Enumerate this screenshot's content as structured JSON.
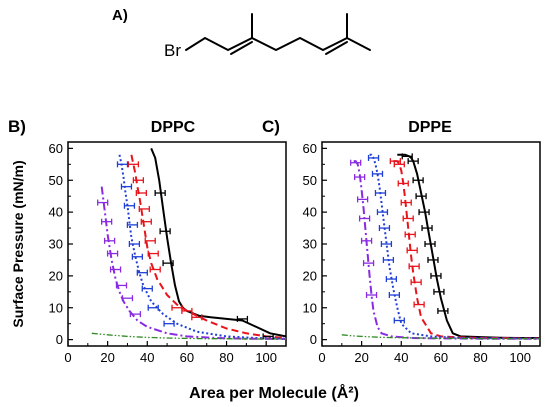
{
  "panels": {
    "a_label": "A)",
    "b_label": "B)",
    "c_label": "C)",
    "structure_atom": "Br"
  },
  "axes": {
    "ylabel": "Surface Pressure (mN/m)",
    "xlabel": "Area per Molecule (Å²)"
  },
  "colors": {
    "black": "#000000",
    "red": "#e8131b",
    "blue": "#1f3fd6",
    "purple": "#8a2be2",
    "green": "#2e8b22"
  },
  "chart_data": [
    {
      "type": "line",
      "title": "DPPC",
      "xlim": [
        0,
        110
      ],
      "ylim": [
        -2,
        62
      ],
      "xticks": [
        "0",
        "20",
        "40",
        "60",
        "80",
        "100"
      ],
      "yticks": [
        "0",
        "10",
        "20",
        "30",
        "40",
        "50",
        "60"
      ],
      "series": [
        {
          "color": "black",
          "style": "solid",
          "x": [
            42,
            44,
            46,
            48,
            50,
            52,
            54,
            56,
            58,
            60,
            62,
            66,
            72,
            80,
            88,
            95,
            102,
            110
          ],
          "y": [
            60,
            57,
            50,
            41,
            32,
            24,
            17,
            12,
            10,
            9,
            8.5,
            7.5,
            7,
            6.5,
            6,
            4,
            2,
            1
          ]
        },
        {
          "color": "red",
          "style": "dashed",
          "x": [
            32,
            33,
            34,
            35,
            36,
            37,
            38,
            39,
            40,
            42,
            45,
            50,
            55,
            60,
            65,
            70,
            80,
            90,
            100,
            110
          ],
          "y": [
            58,
            55,
            52,
            48,
            45,
            41,
            37,
            33,
            29,
            24,
            19,
            14,
            11,
            9,
            7.5,
            6,
            3.5,
            2,
            1,
            0.5
          ]
        },
        {
          "color": "blue",
          "style": "dotted",
          "x": [
            26,
            27,
            28,
            29,
            30,
            31,
            32,
            34,
            36,
            38,
            42,
            48,
            55,
            65,
            80,
            95,
            110
          ],
          "y": [
            58,
            55,
            51,
            46,
            42,
            37,
            32,
            26,
            21,
            17,
            12,
            8,
            5,
            2.5,
            1,
            0.5,
            0.3
          ]
        },
        {
          "color": "purple",
          "style": "dashdot",
          "x": [
            17,
            18,
            19,
            20,
            21,
            22,
            23,
            24,
            26,
            28,
            31,
            35,
            40,
            50,
            60,
            75,
            90,
            110
          ],
          "y": [
            48,
            43,
            38,
            33,
            29,
            25,
            22,
            19,
            15,
            12,
            9,
            6,
            4,
            2,
            1,
            0.5,
            0.3,
            0.2
          ]
        },
        {
          "color": "green",
          "style": "dashdotdot",
          "x": [
            12,
            20,
            30,
            40,
            50,
            60,
            70,
            80,
            90,
            100,
            110
          ],
          "y": [
            2,
            1.5,
            1,
            0.7,
            0.5,
            0.4,
            0.3,
            0.3,
            0.2,
            0.2,
            0.2
          ]
        }
      ],
      "errorbars": [
        {
          "color": "black",
          "x": [
            46.5,
            49,
            50.5,
            88,
            101
          ],
          "y": [
            46,
            34,
            24,
            6.5,
            1
          ]
        },
        {
          "color": "red",
          "x": [
            33,
            35.5,
            37,
            38.5,
            39.5,
            41.5,
            43,
            44,
            55,
            60,
            65
          ],
          "y": [
            55,
            50,
            46,
            41,
            37,
            31,
            27,
            22,
            10,
            9,
            7
          ]
        },
        {
          "color": "blue",
          "x": [
            27.5,
            29.5,
            31,
            32.5,
            33.5,
            35,
            37.5,
            40,
            43,
            51
          ],
          "y": [
            55,
            48,
            42,
            36,
            30,
            26,
            21,
            16,
            10,
            5
          ]
        },
        {
          "color": "purple",
          "x": [
            17.5,
            19.5,
            21,
            22.5,
            24,
            27,
            30,
            34
          ],
          "y": [
            43,
            37,
            31,
            27,
            22,
            17,
            13,
            8
          ]
        }
      ]
    },
    {
      "type": "line",
      "title": "DPPE",
      "xlim": [
        0,
        110
      ],
      "ylim": [
        -2,
        62
      ],
      "xticks": [
        "0",
        "20",
        "40",
        "60",
        "80",
        "100"
      ],
      "yticks": [
        "0",
        "10",
        "20",
        "30",
        "40",
        "50",
        "60"
      ],
      "series": [
        {
          "color": "black",
          "style": "solid",
          "x": [
            38,
            40,
            42,
            44,
            45,
            46,
            48,
            50,
            52,
            54,
            56,
            58,
            60,
            63,
            66,
            70,
            80,
            90,
            100,
            110
          ],
          "y": [
            58,
            58,
            58,
            57.5,
            57,
            56,
            52,
            46,
            40,
            33,
            26,
            19,
            13,
            6,
            2,
            1,
            0.8,
            0.6,
            0.5,
            0.5
          ]
        },
        {
          "color": "red",
          "style": "dashed",
          "x": [
            36,
            37,
            38,
            39,
            40,
            41,
            42,
            43,
            44,
            45,
            46,
            48,
            50,
            55,
            60,
            70,
            80,
            90,
            100,
            110
          ],
          "y": [
            56,
            56,
            56,
            55,
            53,
            49,
            44,
            38,
            32,
            26,
            21,
            13,
            7,
            2,
            1,
            0.7,
            0.5,
            0.5,
            0.4,
            0.4
          ]
        },
        {
          "color": "blue",
          "style": "dotted",
          "x": [
            24,
            25,
            26,
            27,
            28,
            29,
            30,
            31,
            32,
            33,
            34,
            36,
            38,
            40,
            45,
            55,
            70,
            90,
            110
          ],
          "y": [
            58,
            58,
            57,
            55,
            52,
            48,
            43,
            38,
            33,
            28,
            23,
            16,
            10,
            5,
            2,
            1,
            0.5,
            0.4,
            0.3
          ]
        },
        {
          "color": "purple",
          "style": "dashdot",
          "x": [
            16,
            17,
            18,
            19,
            20,
            21,
            22,
            23,
            24,
            25,
            26,
            28,
            30,
            35,
            45,
            60,
            80,
            110
          ],
          "y": [
            56,
            56,
            55,
            52,
            47,
            41,
            34,
            27,
            20,
            14,
            9,
            4,
            2,
            1,
            0.5,
            0.4,
            0.3,
            0.3
          ]
        },
        {
          "color": "green",
          "style": "dashdotdot",
          "x": [
            10,
            15,
            20,
            30,
            40,
            50,
            60,
            70,
            80,
            90,
            100,
            110
          ],
          "y": [
            1.5,
            1.2,
            1,
            0.7,
            0.6,
            0.5,
            0.4,
            0.4,
            0.3,
            0.3,
            0.3,
            0.3
          ]
        }
      ],
      "errorbars": [
        {
          "color": "black",
          "x": [
            43,
            46,
            48.5,
            50,
            51.5,
            53,
            54.5,
            56,
            57.5,
            59,
            61
          ],
          "y": [
            57.5,
            56,
            50,
            45,
            40,
            35,
            30,
            25,
            20,
            15,
            9
          ]
        },
        {
          "color": "red",
          "x": [
            37,
            39,
            41,
            42.5,
            43.5,
            44.5,
            45.5,
            46.5,
            47.5,
            49
          ],
          "y": [
            56,
            55,
            49,
            43,
            38,
            33,
            28,
            23,
            18,
            11
          ]
        },
        {
          "color": "blue",
          "x": [
            26,
            28,
            29.5,
            30.5,
            31.5,
            32.5,
            33.5,
            35,
            36.5,
            39
          ],
          "y": [
            57,
            52,
            46,
            40,
            35,
            30,
            25,
            19,
            14,
            6
          ]
        },
        {
          "color": "purple",
          "x": [
            17,
            19,
            20.5,
            21.5,
            22.5,
            23.5,
            25
          ],
          "y": [
            55.5,
            51,
            44,
            38,
            31,
            24,
            14
          ]
        }
      ]
    }
  ]
}
